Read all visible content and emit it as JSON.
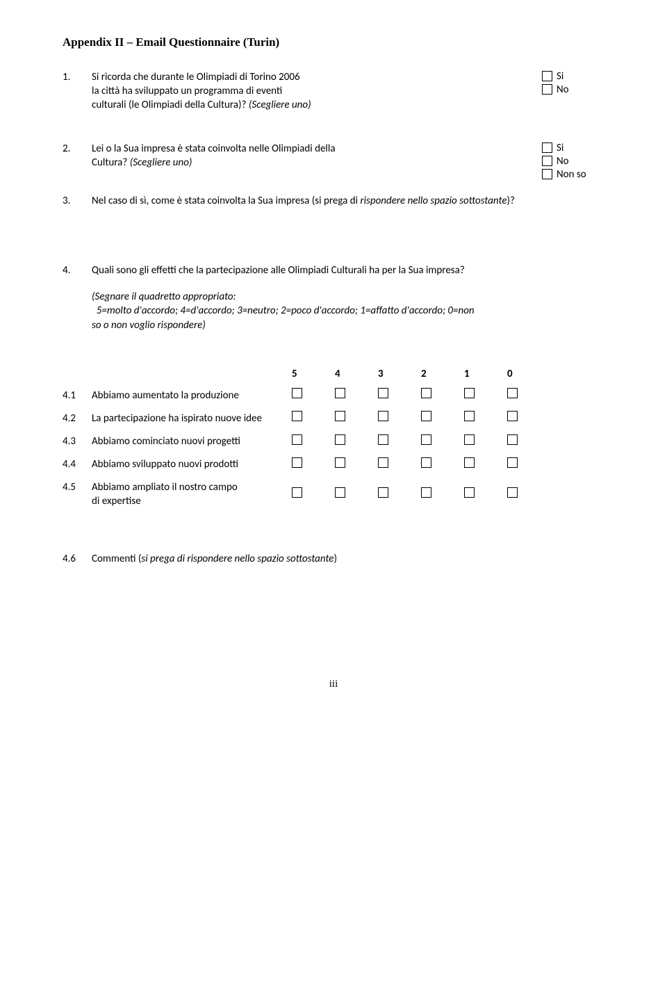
{
  "title": "Appendix II – Email Questionnaire (Turin)",
  "q1": {
    "num": "1.",
    "line1": "Si ricorda che durante le Olimpiadi di Torino 2006",
    "line2": "la città ha sviluppato un programma di eventi",
    "line3_plain": "culturali (le Olimpiadi della Cultura)? ",
    "line3_ital": "(Scegliere uno)",
    "opts": [
      "Si",
      "No"
    ]
  },
  "q2": {
    "num": "2.",
    "line1": "Lei o la Sua impresa è stata coinvolta nelle Olimpiadi della",
    "line2_plain": "Cultura? ",
    "line2_ital": "(Scegliere uno)",
    "opts": [
      "Si",
      "No",
      "Non so"
    ]
  },
  "q3": {
    "num": "3.",
    "text_plain": "Nel caso di sì, come è stata coinvolta la Sua impresa (si prega di ",
    "text_ital": "rispondere nello spazio sottostante",
    "text_after": ")?"
  },
  "q4": {
    "num": "4.",
    "text": "Quali sono gli effetti che la partecipazione alle Olimpiadi Culturali ha per la Sua impresa?",
    "hint_l1": "(Segnare il quadretto appropriato:",
    "hint_l2": "  5=molto d'accordo; 4=d'accordo; 3=neutro; 2=poco d'accordo; 1=affatto d'accordo; 0=non",
    "hint_l3": "so o non voglio rispondere)"
  },
  "scale_headers": [
    "5",
    "4",
    "3",
    "2",
    "1",
    "0"
  ],
  "scale_rows": [
    {
      "num": "4.1",
      "label": "Abbiamo aumentato la produzione"
    },
    {
      "num": "4.2",
      "label": "La partecipazione ha ispirato nuove idee"
    },
    {
      "num": "4.3",
      "label": "Abbiamo cominciato nuovi progetti"
    },
    {
      "num": "4.4",
      "label": "Abbiamo sviluppato nuovi prodotti"
    },
    {
      "num": "4.5",
      "label": "Abbiamo ampliato il nostro campo",
      "label2": "di expertise"
    }
  ],
  "q46": {
    "num": "4.6",
    "text_plain": "Commenti (",
    "text_ital": "si prega di rispondere nello spazio sottostante",
    "text_after": ")"
  },
  "pagenum": "iii"
}
